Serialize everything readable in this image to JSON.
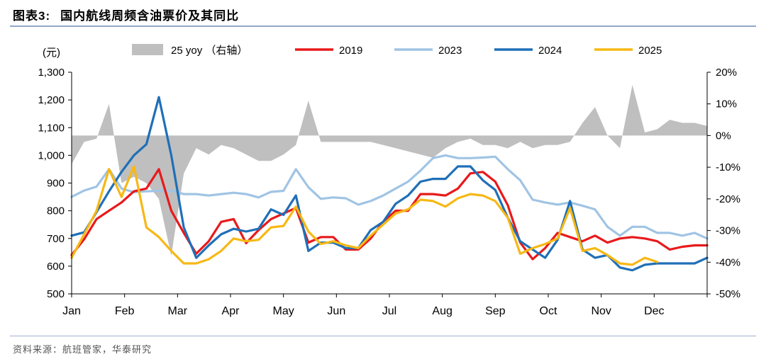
{
  "figure": {
    "label": "图表3:",
    "title": "国内航线周频含油票价及其同比",
    "source": "资料来源：航班管家，华泰研究"
  },
  "chart_data": {
    "type": "line",
    "x_labels": [
      "Jan",
      "Feb",
      "Mar",
      "Apr",
      "May",
      "Jun",
      "Jul",
      "Aug",
      "Sep",
      "Oct",
      "Nov",
      "Dec"
    ],
    "x_range": [
      1,
      52
    ],
    "left_axis": {
      "unit": "(元)",
      "min": 500,
      "max": 1300,
      "ticks": [
        "500",
        "600",
        "700",
        "800",
        "900",
        "1,000",
        "1,100",
        "1,200",
        "1,300"
      ]
    },
    "right_axis": {
      "min": -50,
      "max": 20,
      "ticks": [
        "-50%",
        "-40%",
        "-30%",
        "-20%",
        "-10%",
        "0%",
        "10%",
        "20%"
      ]
    },
    "legend": {
      "yoy": "25 yoy （右轴）",
      "s2019": "2019",
      "s2023": "2023",
      "s2024": "2024",
      "s2025": "2025"
    },
    "series": [
      {
        "key": "s2023",
        "name": "2023",
        "color": "#a0c4e4",
        "values": [
          850,
          873,
          887,
          950,
          880,
          867,
          870,
          872,
          873,
          860,
          860,
          855,
          860,
          865,
          860,
          848,
          868,
          872,
          950,
          885,
          843,
          848,
          845,
          822,
          835,
          855,
          880,
          905,
          945,
          990,
          1000,
          990,
          990,
          992,
          995,
          950,
          910,
          840,
          830,
          822,
          830,
          818,
          805,
          742,
          710,
          742,
          742,
          720,
          720,
          710,
          720,
          700
        ]
      },
      {
        "key": "s2019",
        "name": "2019",
        "color": "#e8191b",
        "values": [
          640,
          697,
          770,
          800,
          830,
          870,
          880,
          950,
          800,
          720,
          645,
          690,
          760,
          770,
          683,
          730,
          770,
          790,
          810,
          685,
          705,
          705,
          660,
          660,
          700,
          760,
          800,
          800,
          860,
          860,
          855,
          880,
          935,
          940,
          905,
          820,
          685,
          625,
          665,
          720,
          705,
          690,
          710,
          685,
          700,
          705,
          700,
          690,
          660,
          670,
          675,
          675
        ]
      },
      {
        "key": "s2024",
        "name": "2024",
        "color": "#1f6fb7",
        "values": [
          710,
          722,
          795,
          870,
          940,
          1000,
          1040,
          1210,
          1000,
          740,
          630,
          675,
          715,
          735,
          725,
          735,
          805,
          785,
          855,
          655,
          685,
          685,
          665,
          665,
          730,
          760,
          825,
          855,
          905,
          915,
          915,
          960,
          960,
          910,
          875,
          775,
          690,
          660,
          630,
          695,
          835,
          660,
          630,
          640,
          595,
          585,
          605,
          610,
          610,
          610,
          610,
          630
        ]
      },
      {
        "key": "s2025",
        "name": "2025",
        "color": "#f6b814",
        "values": [
          630,
          715,
          800,
          950,
          850,
          960,
          740,
          705,
          655,
          610,
          610,
          625,
          655,
          700,
          690,
          695,
          740,
          745,
          815,
          725,
          680,
          690,
          675,
          665,
          710,
          750,
          790,
          805,
          840,
          835,
          815,
          845,
          860,
          855,
          835,
          775,
          645,
          665,
          680,
          700,
          810,
          655,
          665,
          640,
          610,
          605,
          630,
          615,
          null,
          null,
          null,
          null
        ]
      }
    ],
    "bar_series": {
      "key": "yoy",
      "name": "25 yoy （右轴）",
      "color": "#bfbfbf",
      "values": [
        -9,
        -2,
        -1,
        10,
        -15,
        -13,
        -15,
        -20,
        -38,
        -12,
        -4,
        -6,
        -3,
        -4,
        -6,
        -8,
        -8,
        -6,
        -3,
        11,
        -2,
        -2,
        -2,
        -2,
        -2,
        -3,
        -4,
        -5,
        -6,
        -7,
        -4,
        -2,
        -1,
        -3,
        -3,
        -4,
        -2,
        -4,
        -3,
        -3,
        -2,
        4,
        9,
        0,
        -4,
        16,
        1,
        2,
        5,
        4,
        4,
        3
      ]
    }
  }
}
